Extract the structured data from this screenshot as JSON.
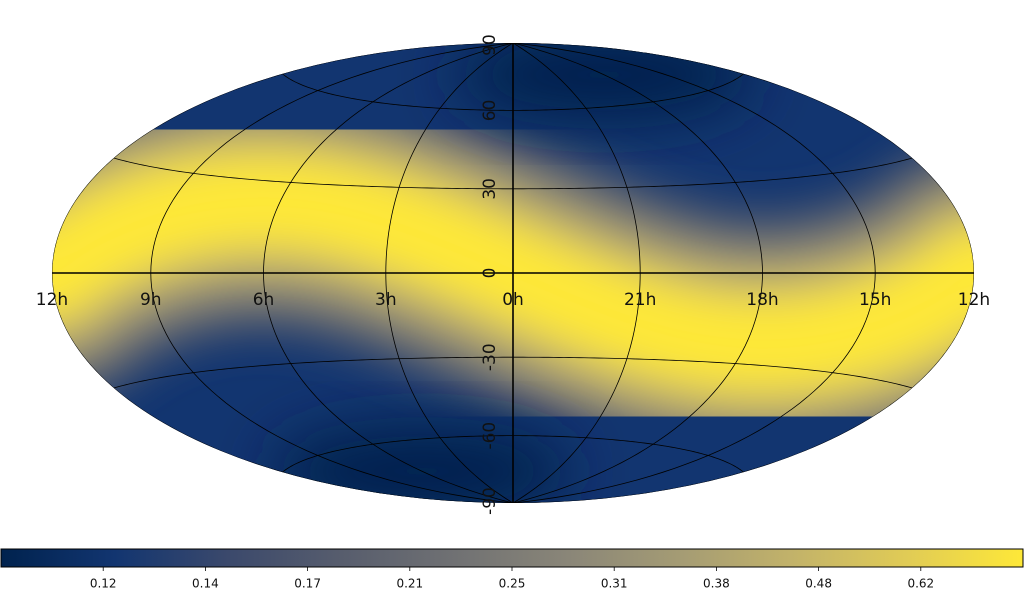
{
  "chart_data": {
    "type": "sky-map",
    "projection": "hammer",
    "colormap": [
      "#00224e",
      "#123570",
      "#3b496c",
      "#575d6d",
      "#707173",
      "#8a8678",
      "#a59c74",
      "#c3b369",
      "#e1cc55",
      "#fee838"
    ],
    "lat_ticks": [
      90,
      60,
      30,
      0,
      -30,
      -60,
      -90
    ],
    "lon_ticks": [
      {
        "value": 12,
        "label": "12h"
      },
      {
        "value": 9,
        "label": "9h"
      },
      {
        "value": 6,
        "label": "6h"
      },
      {
        "value": 3,
        "label": "3h"
      },
      {
        "value": 0,
        "label": "0h"
      },
      {
        "value": -3,
        "label": "21h"
      },
      {
        "value": -6,
        "label": "18h"
      },
      {
        "value": -9,
        "label": "15h"
      },
      {
        "value": -12,
        "label": "12h"
      }
    ],
    "colorbar": {
      "norm": "hist",
      "ticks": [
        0.12,
        0.14,
        0.17,
        0.21,
        0.25,
        0.31,
        0.38,
        0.48,
        0.62
      ]
    }
  }
}
